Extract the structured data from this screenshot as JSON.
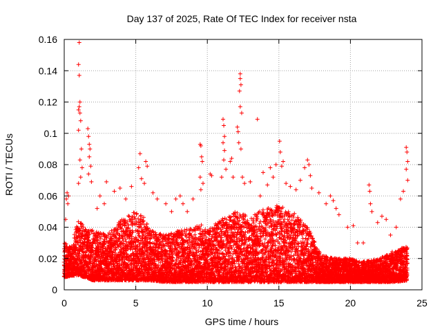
{
  "chart_data": {
    "type": "scatter",
    "title": "Day 137 of 2025, Rate Of TEC Index for receiver nsta",
    "xlabel": "GPS time / hours",
    "ylabel": "ROTI / TECUs",
    "xlim": [
      0,
      25
    ],
    "ylim": [
      0,
      0.16
    ],
    "x_ticks": [
      0,
      5,
      10,
      15,
      20,
      25
    ],
    "x_tick_labels": [
      "0",
      "5",
      "10",
      "15",
      "20",
      "25"
    ],
    "y_ticks": [
      0,
      0.02,
      0.04,
      0.06,
      0.08,
      0.1,
      0.12,
      0.14,
      0.16
    ],
    "y_tick_labels": [
      "0",
      "0.02",
      "0.04",
      "0.06",
      "0.08",
      "0.1",
      "0.12",
      "0.14",
      "0.16"
    ],
    "grid": true,
    "marker": "+",
    "color": "#ff0000",
    "series": [
      {
        "name": "ROTI",
        "points": [
          [
            0.1,
            0.045
          ],
          [
            0.15,
            0.058
          ],
          [
            0.2,
            0.062
          ],
          [
            0.25,
            0.055
          ],
          [
            0.3,
            0.06
          ],
          [
            1.05,
            0.158
          ],
          [
            1.0,
            0.144
          ],
          [
            1.05,
            0.137
          ],
          [
            1.1,
            0.12
          ],
          [
            1.05,
            0.117
          ],
          [
            1.0,
            0.115
          ],
          [
            1.1,
            0.113
          ],
          [
            1.0,
            0.102
          ],
          [
            1.15,
            0.108
          ],
          [
            1.2,
            0.09
          ],
          [
            1.1,
            0.083
          ],
          [
            1.25,
            0.078
          ],
          [
            1.15,
            0.072
          ],
          [
            1.0,
            0.068
          ],
          [
            1.65,
            0.103
          ],
          [
            1.7,
            0.098
          ],
          [
            1.75,
            0.093
          ],
          [
            1.8,
            0.09
          ],
          [
            1.75,
            0.085
          ],
          [
            1.85,
            0.079
          ],
          [
            1.7,
            0.074
          ],
          [
            1.9,
            0.069
          ],
          [
            2.3,
            0.052
          ],
          [
            2.5,
            0.06
          ],
          [
            2.8,
            0.055
          ],
          [
            2.95,
            0.069
          ],
          [
            3.5,
            0.063
          ],
          [
            3.9,
            0.065
          ],
          [
            4.3,
            0.058
          ],
          [
            4.7,
            0.066
          ],
          [
            5.2,
            0.078
          ],
          [
            5.3,
            0.087
          ],
          [
            5.4,
            0.071
          ],
          [
            5.6,
            0.068
          ],
          [
            5.7,
            0.082
          ],
          [
            5.8,
            0.079
          ],
          [
            6.2,
            0.062
          ],
          [
            6.5,
            0.058
          ],
          [
            7.1,
            0.055
          ],
          [
            7.5,
            0.05
          ],
          [
            7.8,
            0.058
          ],
          [
            8.1,
            0.06
          ],
          [
            8.3,
            0.055
          ],
          [
            8.6,
            0.05
          ],
          [
            9.0,
            0.058
          ],
          [
            9.5,
            0.093
          ],
          [
            9.55,
            0.092
          ],
          [
            9.6,
            0.085
          ],
          [
            9.65,
            0.082
          ],
          [
            9.5,
            0.072
          ],
          [
            9.7,
            0.068
          ],
          [
            9.55,
            0.064
          ],
          [
            10.2,
            0.074
          ],
          [
            10.3,
            0.073
          ],
          [
            11.1,
            0.109
          ],
          [
            11.15,
            0.105
          ],
          [
            11.2,
            0.098
          ],
          [
            11.1,
            0.094
          ],
          [
            11.2,
            0.089
          ],
          [
            11.15,
            0.083
          ],
          [
            11.3,
            0.077
          ],
          [
            11.0,
            0.072
          ],
          [
            11.6,
            0.082
          ],
          [
            11.7,
            0.084
          ],
          [
            11.8,
            0.072
          ],
          [
            12.1,
            0.104
          ],
          [
            12.15,
            0.101
          ],
          [
            12.3,
            0.138
          ],
          [
            12.3,
            0.135
          ],
          [
            12.35,
            0.131
          ],
          [
            12.25,
            0.127
          ],
          [
            12.3,
            0.117
          ],
          [
            12.4,
            0.113
          ],
          [
            12.2,
            0.094
          ],
          [
            12.35,
            0.09
          ],
          [
            12.45,
            0.072
          ],
          [
            12.6,
            0.068
          ],
          [
            13.0,
            0.069
          ],
          [
            13.5,
            0.109
          ],
          [
            13.7,
            0.06
          ],
          [
            13.9,
            0.075
          ],
          [
            14.2,
            0.067
          ],
          [
            14.4,
            0.078
          ],
          [
            14.6,
            0.072
          ],
          [
            14.8,
            0.08
          ],
          [
            15.05,
            0.095
          ],
          [
            15.1,
            0.088
          ],
          [
            15.2,
            0.079
          ],
          [
            15.3,
            0.082
          ],
          [
            15.5,
            0.068
          ],
          [
            15.8,
            0.066
          ],
          [
            16.2,
            0.064
          ],
          [
            16.5,
            0.07
          ],
          [
            16.8,
            0.078
          ],
          [
            17.0,
            0.083
          ],
          [
            17.1,
            0.08
          ],
          [
            17.2,
            0.073
          ],
          [
            17.3,
            0.065
          ],
          [
            17.8,
            0.062
          ],
          [
            18.3,
            0.055
          ],
          [
            18.6,
            0.06
          ],
          [
            18.8,
            0.057
          ],
          [
            19.0,
            0.052
          ],
          [
            19.2,
            0.048
          ],
          [
            19.8,
            0.04
          ],
          [
            20.2,
            0.041
          ],
          [
            20.5,
            0.03
          ],
          [
            20.9,
            0.03
          ],
          [
            21.3,
            0.067
          ],
          [
            21.35,
            0.063
          ],
          [
            21.4,
            0.055
          ],
          [
            21.5,
            0.05
          ],
          [
            21.9,
            0.043
          ],
          [
            22.2,
            0.047
          ],
          [
            22.5,
            0.045
          ],
          [
            22.8,
            0.035
          ],
          [
            23.2,
            0.04
          ],
          [
            23.5,
            0.058
          ],
          [
            23.7,
            0.063
          ],
          [
            23.9,
            0.091
          ],
          [
            23.95,
            0.088
          ],
          [
            24.0,
            0.082
          ],
          [
            23.9,
            0.077
          ],
          [
            24.0,
            0.07
          ]
        ],
        "dense_band": {
          "x_start": 0.0,
          "x_end": 24.0,
          "envelope_x": [
            0,
            0.5,
            1,
            1.5,
            2,
            3,
            4,
            5,
            5.5,
            6,
            7,
            8,
            9,
            9.5,
            10,
            11,
            12,
            13,
            14,
            15,
            16,
            16.5,
            17,
            18,
            19,
            20,
            21,
            22,
            23,
            24
          ],
          "envelope_low": [
            0.008,
            0.009,
            0.009,
            0.008,
            0.006,
            0.006,
            0.006,
            0.006,
            0.006,
            0.006,
            0.005,
            0.005,
            0.005,
            0.005,
            0.005,
            0.005,
            0.005,
            0.005,
            0.005,
            0.005,
            0.005,
            0.005,
            0.005,
            0.005,
            0.005,
            0.005,
            0.005,
            0.005,
            0.005,
            0.006
          ],
          "envelope_high": [
            0.03,
            0.028,
            0.045,
            0.04,
            0.038,
            0.035,
            0.045,
            0.05,
            0.048,
            0.038,
            0.035,
            0.038,
            0.04,
            0.042,
            0.038,
            0.045,
            0.05,
            0.048,
            0.052,
            0.055,
            0.05,
            0.045,
            0.04,
            0.022,
            0.02,
            0.02,
            0.018,
            0.02,
            0.025,
            0.028
          ]
        }
      }
    ]
  }
}
